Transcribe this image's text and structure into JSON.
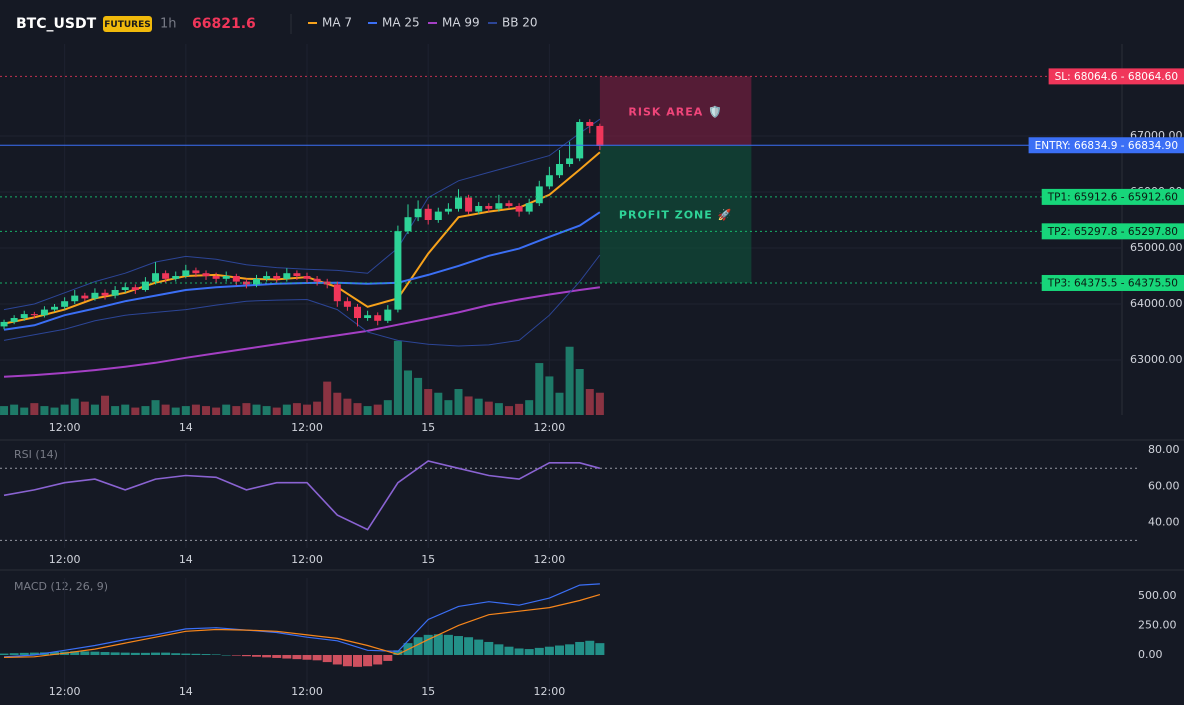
{
  "header": {
    "symbol": "BTC_USDT",
    "badge": "FUTURES",
    "interval": "1h",
    "last_price": 66821.6
  },
  "chart_data": [
    {
      "type": "candlestick",
      "xlim": [
        -0.4,
        110.7
      ],
      "xticks": [
        {
          "value": 6,
          "label": "12:00"
        },
        {
          "value": 18,
          "label": "14"
        },
        {
          "value": 30,
          "label": "12:00"
        },
        {
          "value": 42,
          "label": "15"
        },
        {
          "value": 54,
          "label": "12:00"
        }
      ],
      "ylim": [
        62018,
        68643
      ],
      "yticks": [
        {
          "value": 63000,
          "label": "63000.00"
        },
        {
          "value": 64000,
          "label": "64000.00"
        },
        {
          "value": 65000,
          "label": "65000.00"
        },
        {
          "value": 66000,
          "label": "66000.00"
        },
        {
          "value": 67000,
          "label": "67000.00"
        }
      ],
      "grid": true,
      "up_color": "#2ed397",
      "down_color": "#f0365a",
      "candles": [
        [
          63600,
          63720,
          63550,
          63680
        ],
        [
          63680,
          63800,
          63640,
          63750
        ],
        [
          63750,
          63880,
          63700,
          63820
        ],
        [
          63820,
          63860,
          63740,
          63800
        ],
        [
          63800,
          63960,
          63760,
          63900
        ],
        [
          63900,
          64000,
          63860,
          63950
        ],
        [
          63950,
          64120,
          63900,
          64050
        ],
        [
          64050,
          64250,
          64000,
          64150
        ],
        [
          64150,
          64200,
          64050,
          64100
        ],
        [
          64100,
          64280,
          64060,
          64200
        ],
        [
          64200,
          64260,
          64080,
          64150
        ],
        [
          64150,
          64320,
          64100,
          64250
        ],
        [
          64250,
          64380,
          64200,
          64300
        ],
        [
          64300,
          64350,
          64180,
          64250
        ],
        [
          64250,
          64480,
          64220,
          64400
        ],
        [
          64400,
          64750,
          64350,
          64550
        ],
        [
          64550,
          64600,
          64380,
          64450
        ],
        [
          64450,
          64580,
          64400,
          64500
        ],
        [
          64500,
          64700,
          64460,
          64600
        ],
        [
          64600,
          64650,
          64480,
          64550
        ],
        [
          64550,
          64600,
          64430,
          64500
        ],
        [
          64500,
          64560,
          64380,
          64450
        ],
        [
          64450,
          64580,
          64400,
          64500
        ],
        [
          64500,
          64540,
          64330,
          64400
        ],
        [
          64400,
          64450,
          64280,
          64350
        ],
        [
          64350,
          64520,
          64300,
          64450
        ],
        [
          64450,
          64580,
          64400,
          64500
        ],
        [
          64500,
          64560,
          64380,
          64450
        ],
        [
          64450,
          64640,
          64400,
          64550
        ],
        [
          64550,
          64600,
          64430,
          64500
        ],
        [
          64500,
          64560,
          64380,
          64450
        ],
        [
          64450,
          64500,
          64330,
          64400
        ],
        [
          64400,
          64450,
          64280,
          64350
        ],
        [
          64350,
          64400,
          63950,
          64050
        ],
        [
          64050,
          64120,
          63880,
          63950
        ],
        [
          63950,
          64000,
          63600,
          63750
        ],
        [
          63750,
          63880,
          63700,
          63800
        ],
        [
          63800,
          63850,
          63620,
          63700
        ],
        [
          63700,
          63980,
          63660,
          63900
        ],
        [
          63900,
          65400,
          63850,
          65300
        ],
        [
          65300,
          65780,
          65250,
          65550
        ],
        [
          65550,
          65850,
          65480,
          65700
        ],
        [
          65700,
          65780,
          65420,
          65500
        ],
        [
          65500,
          65720,
          65450,
          65650
        ],
        [
          65650,
          65800,
          65600,
          65700
        ],
        [
          65700,
          66050,
          65650,
          65900
        ],
        [
          65900,
          65950,
          65600,
          65650
        ],
        [
          65650,
          65820,
          65600,
          65750
        ],
        [
          65750,
          65800,
          65640,
          65700
        ],
        [
          65700,
          65950,
          65650,
          65800
        ],
        [
          65800,
          65850,
          65700,
          65750
        ],
        [
          65750,
          65800,
          65560,
          65650
        ],
        [
          65650,
          65880,
          65600,
          65800
        ],
        [
          65800,
          66200,
          65750,
          66100
        ],
        [
          66100,
          66450,
          66050,
          66300
        ],
        [
          66300,
          66750,
          66250,
          66500
        ],
        [
          66500,
          66900,
          66450,
          66600
        ],
        [
          66600,
          67300,
          66550,
          67250
        ],
        [
          67250,
          67300,
          67050,
          67180
        ],
        [
          67180,
          67220,
          66750,
          66821.6
        ]
      ],
      "volume": {
        "ylim": [
          0,
          500
        ],
        "up_color": "#1e7a68",
        "down_color": "#8a3342",
        "values": [
          12,
          14,
          10,
          16,
          12,
          10,
          14,
          22,
          18,
          14,
          26,
          12,
          14,
          10,
          12,
          20,
          14,
          10,
          12,
          14,
          12,
          10,
          14,
          12,
          16,
          14,
          12,
          10,
          14,
          16,
          14,
          18,
          45,
          30,
          22,
          16,
          12,
          14,
          20,
          100,
          60,
          50,
          35,
          30,
          20,
          35,
          25,
          22,
          18,
          16,
          12,
          15,
          20,
          70,
          52,
          30,
          92,
          62,
          35,
          30
        ]
      },
      "line_x": [
        0,
        3,
        6,
        9,
        12,
        15,
        18,
        21,
        24,
        27,
        30,
        33,
        36,
        39,
        42,
        45,
        48,
        51,
        54,
        57,
        59
      ],
      "series": [
        {
          "name": "MA 7",
          "color": "#f7a21b",
          "values": [
            63650,
            63760,
            63900,
            64100,
            64200,
            64380,
            64500,
            64520,
            64450,
            64440,
            64480,
            64300,
            63950,
            64100,
            64900,
            65550,
            65650,
            65720,
            65950,
            66400,
            66710
          ]
        },
        {
          "name": "MA 25",
          "color": "#3b6ff5",
          "values": [
            63540,
            63620,
            63800,
            63920,
            64050,
            64150,
            64250,
            64300,
            64330,
            64360,
            64375,
            64380,
            64360,
            64380,
            64520,
            64680,
            64860,
            64990,
            65200,
            65400,
            65640
          ]
        },
        {
          "name": "MA 99",
          "color": "#a43fc4",
          "values": [
            62700,
            62730,
            62770,
            62820,
            62880,
            62950,
            63040,
            63120,
            63200,
            63280,
            63360,
            63440,
            63520,
            63630,
            63740,
            63850,
            63980,
            64080,
            64170,
            64250,
            64300
          ]
        },
        {
          "name": "BB 20",
          "color": "#2c4596",
          "values": [
            63900,
            64000,
            64200,
            64400,
            64550,
            64750,
            64850,
            64800,
            64700,
            64650,
            64620,
            64600,
            64550,
            65000,
            65900,
            66200,
            66350,
            66500,
            66650,
            67050,
            67300
          ],
          "lower": [
            63350,
            63450,
            63550,
            63700,
            63800,
            63850,
            63900,
            63980,
            64050,
            64070,
            64080,
            63900,
            63500,
            63350,
            63280,
            63250,
            63270,
            63350,
            63800,
            64400,
            64875
          ]
        }
      ],
      "levels": [
        {
          "label": "SL: 68064.6 - 68064.60",
          "value": 68064.6,
          "color": "#f0365a",
          "text_color": "#ffffff",
          "dashed": true
        },
        {
          "label": "ENTRY: 66834.9 - 66834.90",
          "value": 66834.9,
          "color": "#3b6ff5",
          "text_color": "#ffffff",
          "dashed": false
        },
        {
          "label": "TP1: 65912.6 - 65912.60",
          "value": 65912.6,
          "color": "#17d67a",
          "text_color": "#0b1a12",
          "dashed": true
        },
        {
          "label": "TP2: 65297.8 - 65297.80",
          "value": 65297.8,
          "color": "#17d67a",
          "text_color": "#0b1a12",
          "dashed": true
        },
        {
          "label": "TP3: 64375.5 - 64375.50",
          "value": 64375.5,
          "color": "#17d67a",
          "text_color": "#0b1a12",
          "dashed": true
        }
      ],
      "zones": [
        {
          "label": "RISK AREA 🛡️",
          "x": [
            59,
            74
          ],
          "top": 68064.6,
          "bottom": 66834.9,
          "color": "#8a1f45",
          "text_color": "#f0457a"
        },
        {
          "label": "PROFIT ZONE 🚀",
          "x": [
            59,
            74
          ],
          "top": 66834.9,
          "bottom": 64375.5,
          "color": "#0f5a3e",
          "text_color": "#2ed397"
        }
      ]
    },
    {
      "type": "line",
      "title": "RSI (14)",
      "color": "#8a63d2",
      "ylim": [
        28,
        84
      ],
      "yticks": [
        {
          "value": 40,
          "label": "40.00"
        },
        {
          "value": 60,
          "label": "60.00"
        },
        {
          "value": 80,
          "label": "80.00"
        }
      ],
      "levels": [
        70,
        30
      ],
      "values": [
        55,
        58,
        62,
        64,
        58,
        64,
        66,
        65,
        58,
        62,
        62,
        44,
        36,
        62,
        74,
        70,
        66,
        64,
        73,
        73,
        70
      ]
    },
    {
      "type": "macd",
      "title": "MACD (12, 26, 9)",
      "ylim": [
        -380,
        650
      ],
      "yticks": [
        {
          "value": 0,
          "label": "0.00"
        },
        {
          "value": 250,
          "label": "250.00"
        },
        {
          "value": 500,
          "label": "500.00"
        }
      ],
      "up_color": "#26a69a",
      "down_color": "#ef5b6a",
      "histogram": [
        12,
        15,
        18,
        20,
        22,
        25,
        28,
        32,
        30,
        28,
        25,
        22,
        20,
        18,
        18,
        20,
        20,
        15,
        12,
        10,
        8,
        5,
        0,
        -5,
        -10,
        -15,
        -20,
        -25,
        -30,
        -35,
        -40,
        -45,
        -60,
        -80,
        -95,
        -100,
        -95,
        -80,
        -50,
        40,
        100,
        150,
        170,
        175,
        170,
        160,
        150,
        130,
        110,
        90,
        70,
        55,
        50,
        60,
        70,
        80,
        90,
        110,
        120,
        100
      ],
      "series": [
        {
          "color": "#3b6ff5",
          "values": [
            -15,
            0,
            40,
            80,
            130,
            170,
            220,
            230,
            210,
            190,
            150,
            120,
            40,
            30,
            300,
            410,
            450,
            420,
            480,
            590,
            600
          ]
        },
        {
          "color": "#f7861b",
          "values": [
            -20,
            -15,
            15,
            50,
            100,
            150,
            200,
            215,
            210,
            200,
            170,
            140,
            80,
            5,
            130,
            250,
            340,
            370,
            400,
            460,
            510
          ]
        }
      ]
    }
  ]
}
